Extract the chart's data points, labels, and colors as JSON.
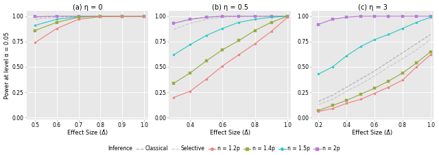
{
  "panels": [
    {
      "title": "(a) η = 0",
      "xlim": [
        0.46,
        1.02
      ],
      "xticks": [
        0.5,
        0.6,
        0.7,
        0.8,
        0.9,
        1.0
      ],
      "x_vals": [
        0.5,
        0.6,
        0.7,
        0.8,
        0.9,
        1.0
      ],
      "series": {
        "Classical": [
          0.99,
          1.0,
          1.0,
          1.0,
          1.0,
          1.0
        ],
        "Selective": [
          0.97,
          0.99,
          1.0,
          1.0,
          1.0,
          1.0
        ],
        "n=1.2p": [
          0.74,
          0.88,
          0.97,
          0.995,
          1.0,
          1.0
        ],
        "n=1.4p": [
          0.86,
          0.94,
          0.99,
          1.0,
          1.0,
          1.0
        ],
        "n=1.5p": [
          0.91,
          0.97,
          0.995,
          1.0,
          1.0,
          1.0
        ],
        "n=2p": [
          0.995,
          1.0,
          1.0,
          1.0,
          1.0,
          1.0
        ]
      }
    },
    {
      "title": "(b) η = 0.5",
      "xlim": [
        0.27,
        1.02
      ],
      "xticks": [
        0.4,
        0.6,
        0.8,
        1.0
      ],
      "x_vals": [
        0.3,
        0.4,
        0.5,
        0.6,
        0.7,
        0.8,
        0.9,
        1.0
      ],
      "series": {
        "Classical": [
          0.93,
          0.97,
          0.99,
          1.0,
          1.0,
          1.0,
          1.0,
          1.0
        ],
        "Selective": [
          0.87,
          0.93,
          0.97,
          0.99,
          1.0,
          1.0,
          1.0,
          1.0
        ],
        "n=1.2p": [
          0.2,
          0.26,
          0.38,
          0.51,
          0.62,
          0.73,
          0.85,
          0.99
        ],
        "n=1.4p": [
          0.34,
          0.44,
          0.56,
          0.67,
          0.76,
          0.86,
          0.94,
          1.0
        ],
        "n=1.5p": [
          0.62,
          0.72,
          0.81,
          0.88,
          0.94,
          0.97,
          0.99,
          1.0
        ],
        "n=2p": [
          0.93,
          0.97,
          0.99,
          1.0,
          1.0,
          1.0,
          1.0,
          1.0
        ]
      }
    },
    {
      "title": "(c) η = 3",
      "xlim": [
        0.15,
        1.02
      ],
      "xticks": [
        0.2,
        0.4,
        0.6,
        0.8,
        1.0
      ],
      "x_vals": [
        0.2,
        0.3,
        0.4,
        0.5,
        0.6,
        0.7,
        0.8,
        0.9,
        1.0
      ],
      "series": {
        "Classical": [
          0.16,
          0.22,
          0.3,
          0.38,
          0.46,
          0.55,
          0.64,
          0.73,
          0.82
        ],
        "Selective": [
          0.13,
          0.18,
          0.26,
          0.33,
          0.41,
          0.5,
          0.58,
          0.67,
          0.77
        ],
        "n=1.2p": [
          0.06,
          0.09,
          0.14,
          0.18,
          0.24,
          0.3,
          0.37,
          0.5,
          0.62
        ],
        "n=1.4p": [
          0.07,
          0.12,
          0.17,
          0.23,
          0.29,
          0.36,
          0.44,
          0.54,
          0.65
        ],
        "n=1.5p": [
          0.43,
          0.5,
          0.61,
          0.7,
          0.77,
          0.82,
          0.88,
          0.94,
          0.99
        ],
        "n=2p": [
          0.92,
          0.97,
          0.99,
          1.0,
          1.0,
          1.0,
          1.0,
          1.0,
          1.0
        ]
      }
    }
  ],
  "series_styles": {
    "Classical": {
      "color": "#b0b0b0",
      "linestyle": "--",
      "marker": null,
      "linewidth": 0.85
    },
    "Selective": {
      "color": "#c8c8c8",
      "linestyle": "--",
      "marker": null,
      "linewidth": 0.85
    },
    "n=1.2p": {
      "color": "#f08080",
      "linestyle": "-",
      "marker": "o",
      "linewidth": 0.85
    },
    "n=1.4p": {
      "color": "#9aaa40",
      "linestyle": "-",
      "marker": "s",
      "linewidth": 0.85
    },
    "n=1.5p": {
      "color": "#30c8c8",
      "linestyle": "-",
      "marker": "o",
      "linewidth": 0.85
    },
    "n=2p": {
      "color": "#b87ad8",
      "linestyle": "-",
      "marker": "s",
      "linewidth": 0.85
    }
  },
  "series_order": [
    "n=2p",
    "n=1.5p",
    "n=1.4p",
    "n=1.2p",
    "Selective",
    "Classical"
  ],
  "ylabel": "Power at level α = 0.05",
  "xlabel": "Effect Size (Δ̂)",
  "ylim": [
    -0.02,
    1.05
  ],
  "yticks": [
    0.0,
    0.25,
    0.5,
    0.75,
    1.0
  ],
  "ytick_labels": [
    "0.00",
    "0.25",
    "0.50",
    "0.75",
    "1.00"
  ],
  "bg_color": "#e8e8e8",
  "grid_color": "#ffffff",
  "markersize": 2.2,
  "tick_fontsize": 5.5,
  "label_fontsize": 6.0,
  "title_fontsize": 7.0
}
